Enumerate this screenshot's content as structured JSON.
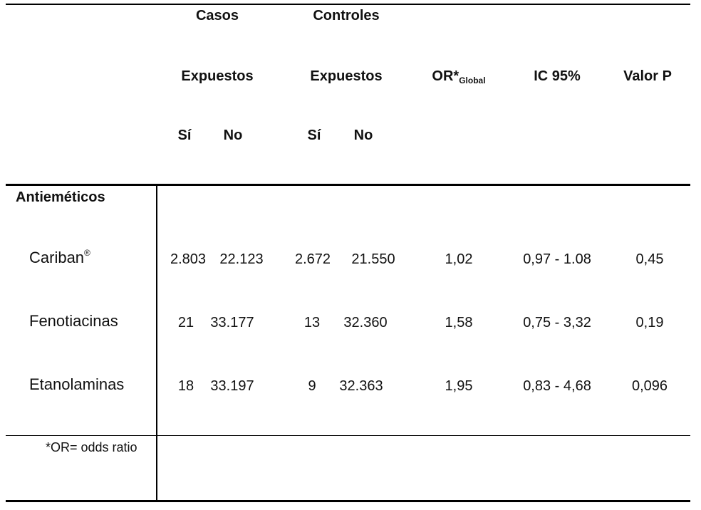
{
  "header": {
    "casos": "Casos",
    "controles": "Controles",
    "expuestos_casos": "Expuestos",
    "expuestos_controles": "Expuestos",
    "or": "OR*",
    "or_sub": "Global",
    "ic": "IC 95%",
    "p": "Valor P",
    "si_casos": "Sí",
    "no_casos": "No",
    "si_controles": "Sí",
    "no_controles": "No"
  },
  "section_label": "Antieméticos",
  "rows": [
    {
      "name": "Cariban",
      "reg": "®",
      "casos_si": "2.803",
      "casos_no": "22.123",
      "ctrl_si": "2.672",
      "ctrl_no": "21.550",
      "or": "1,02",
      "ic": "0,97 - 1.08",
      "p": "0,45"
    },
    {
      "name": "Fenotiacinas",
      "reg": "",
      "casos_si": "21",
      "casos_no": "33.177",
      "ctrl_si": "13",
      "ctrl_no": "32.360",
      "or": "1,58",
      "ic": "0,75 - 3,32",
      "p": "0,19"
    },
    {
      "name": "Etanolaminas",
      "reg": "",
      "casos_si": "18",
      "casos_no": "33.197",
      "ctrl_si": "9",
      "ctrl_no": "32.363",
      "or": "1,95",
      "ic": "0,83 - 4,68",
      "p": "0,096"
    }
  ],
  "footnote": "*OR= odds ratio"
}
